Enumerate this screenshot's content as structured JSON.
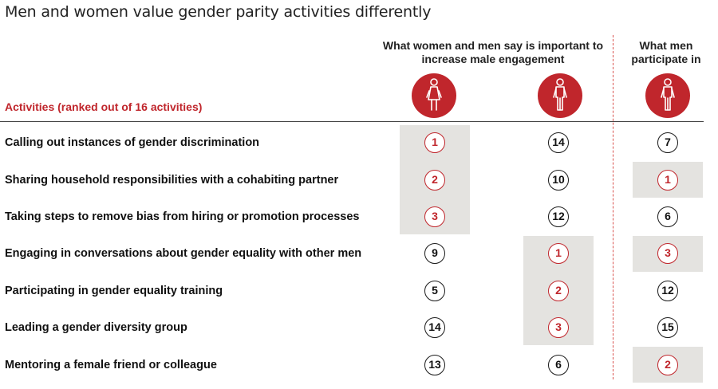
{
  "title": "Men and women value gender parity activities differently",
  "column_headers": {
    "important": "What women and men say is important to increase male engagement",
    "participate": "What men participate in"
  },
  "activities_label": "Activities (ranked out of 16 activities)",
  "icons": [
    "female-figure-icon",
    "male-figure-icon",
    "male-figure-icon"
  ],
  "colors": {
    "accent": "#c0262c",
    "shade": "#e4e3e0",
    "divider": "#d9534f"
  },
  "chart_data": {
    "type": "table",
    "title": "Men and women value gender parity activities differently",
    "columns": [
      "Women say important",
      "Men say important",
      "Men participate in"
    ],
    "rows": [
      {
        "activity": "Calling out instances of gender discrimination",
        "ranks": [
          1,
          14,
          7
        ]
      },
      {
        "activity": "Sharing household responsibilities with a cohabiting partner",
        "ranks": [
          2,
          10,
          1
        ]
      },
      {
        "activity": "Taking steps to remove bias from hiring or promotion processes",
        "ranks": [
          3,
          12,
          6
        ]
      },
      {
        "activity": "Engaging in conversations about gender equality with other men",
        "ranks": [
          9,
          1,
          3
        ]
      },
      {
        "activity": "Participating in gender equality training",
        "ranks": [
          5,
          2,
          12
        ]
      },
      {
        "activity": "Leading a gender diversity group",
        "ranks": [
          14,
          3,
          15
        ]
      },
      {
        "activity": "Mentoring a female friend or colleague",
        "ranks": [
          13,
          6,
          2
        ]
      }
    ],
    "highlight_top_n": 3
  }
}
